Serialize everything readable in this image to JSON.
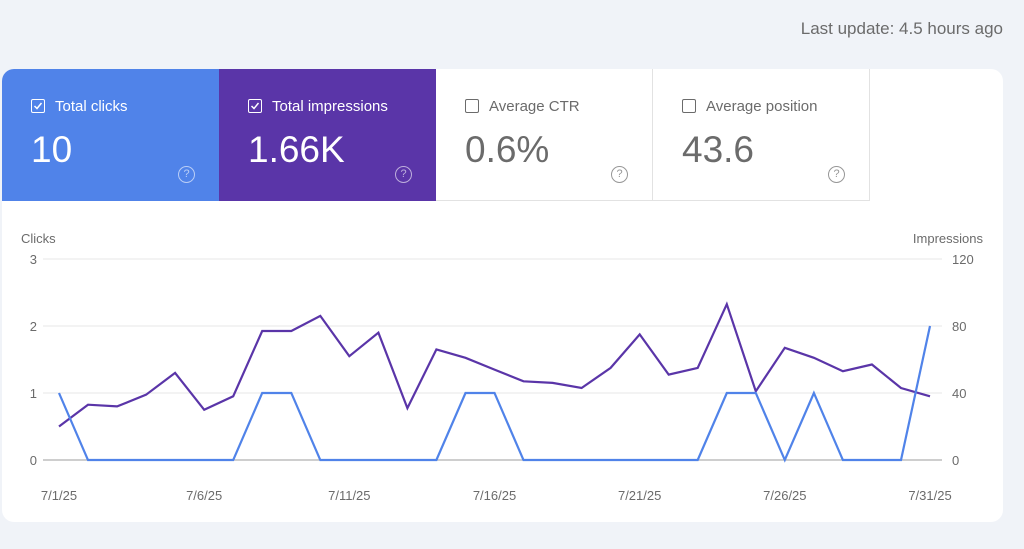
{
  "header": {
    "last_update": "Last update: 4.5 hours ago"
  },
  "metrics": [
    {
      "label": "Total clicks",
      "value": "10",
      "checked": true,
      "color": "#5083e9"
    },
    {
      "label": "Total impressions",
      "value": "1.66K",
      "checked": true,
      "color": "#5a35a8"
    },
    {
      "label": "Average CTR",
      "value": "0.6%",
      "checked": false
    },
    {
      "label": "Average position",
      "value": "43.6",
      "checked": false
    }
  ],
  "help_glyph": "?",
  "chart_data": {
    "type": "line",
    "title": "",
    "xlabel": "",
    "ylabel_left": "Clicks",
    "ylabel_right": "Impressions",
    "ylim_left": [
      0,
      3
    ],
    "ylim_right": [
      0,
      120
    ],
    "yticks_left": [
      "0",
      "1",
      "2",
      "3"
    ],
    "yticks_right": [
      "0",
      "40",
      "80",
      "120"
    ],
    "grid": true,
    "legend": "none",
    "x": [
      "7/1/25",
      "7/2/25",
      "7/3/25",
      "7/4/25",
      "7/5/25",
      "7/6/25",
      "7/7/25",
      "7/8/25",
      "7/9/25",
      "7/10/25",
      "7/11/25",
      "7/12/25",
      "7/13/25",
      "7/14/25",
      "7/15/25",
      "7/16/25",
      "7/17/25",
      "7/18/25",
      "7/19/25",
      "7/20/25",
      "7/21/25",
      "7/22/25",
      "7/23/25",
      "7/24/25",
      "7/25/25",
      "7/26/25",
      "7/27/25",
      "7/28/25",
      "7/29/25",
      "7/30/25",
      "7/31/25"
    ],
    "xticks": [
      "7/1/25",
      "7/6/25",
      "7/11/25",
      "7/16/25",
      "7/21/25",
      "7/26/25",
      "7/31/25"
    ],
    "series": [
      {
        "name": "Clicks",
        "axis": "left",
        "color": "#5083e9",
        "values": [
          1,
          0,
          0,
          0,
          0,
          0,
          0,
          1,
          1,
          0,
          0,
          0,
          0,
          0,
          1,
          1,
          0,
          0,
          0,
          0,
          0,
          0,
          0,
          1,
          1,
          0,
          1,
          0,
          0,
          0,
          2
        ]
      },
      {
        "name": "Impressions",
        "axis": "right",
        "color": "#5a35a8",
        "values": [
          20,
          33,
          32,
          39,
          52,
          30,
          38,
          77,
          77,
          86,
          62,
          76,
          31,
          66,
          61,
          54,
          47,
          46,
          43,
          55,
          75,
          51,
          55,
          93,
          41,
          67,
          61,
          53,
          57,
          43,
          38
        ]
      }
    ]
  }
}
